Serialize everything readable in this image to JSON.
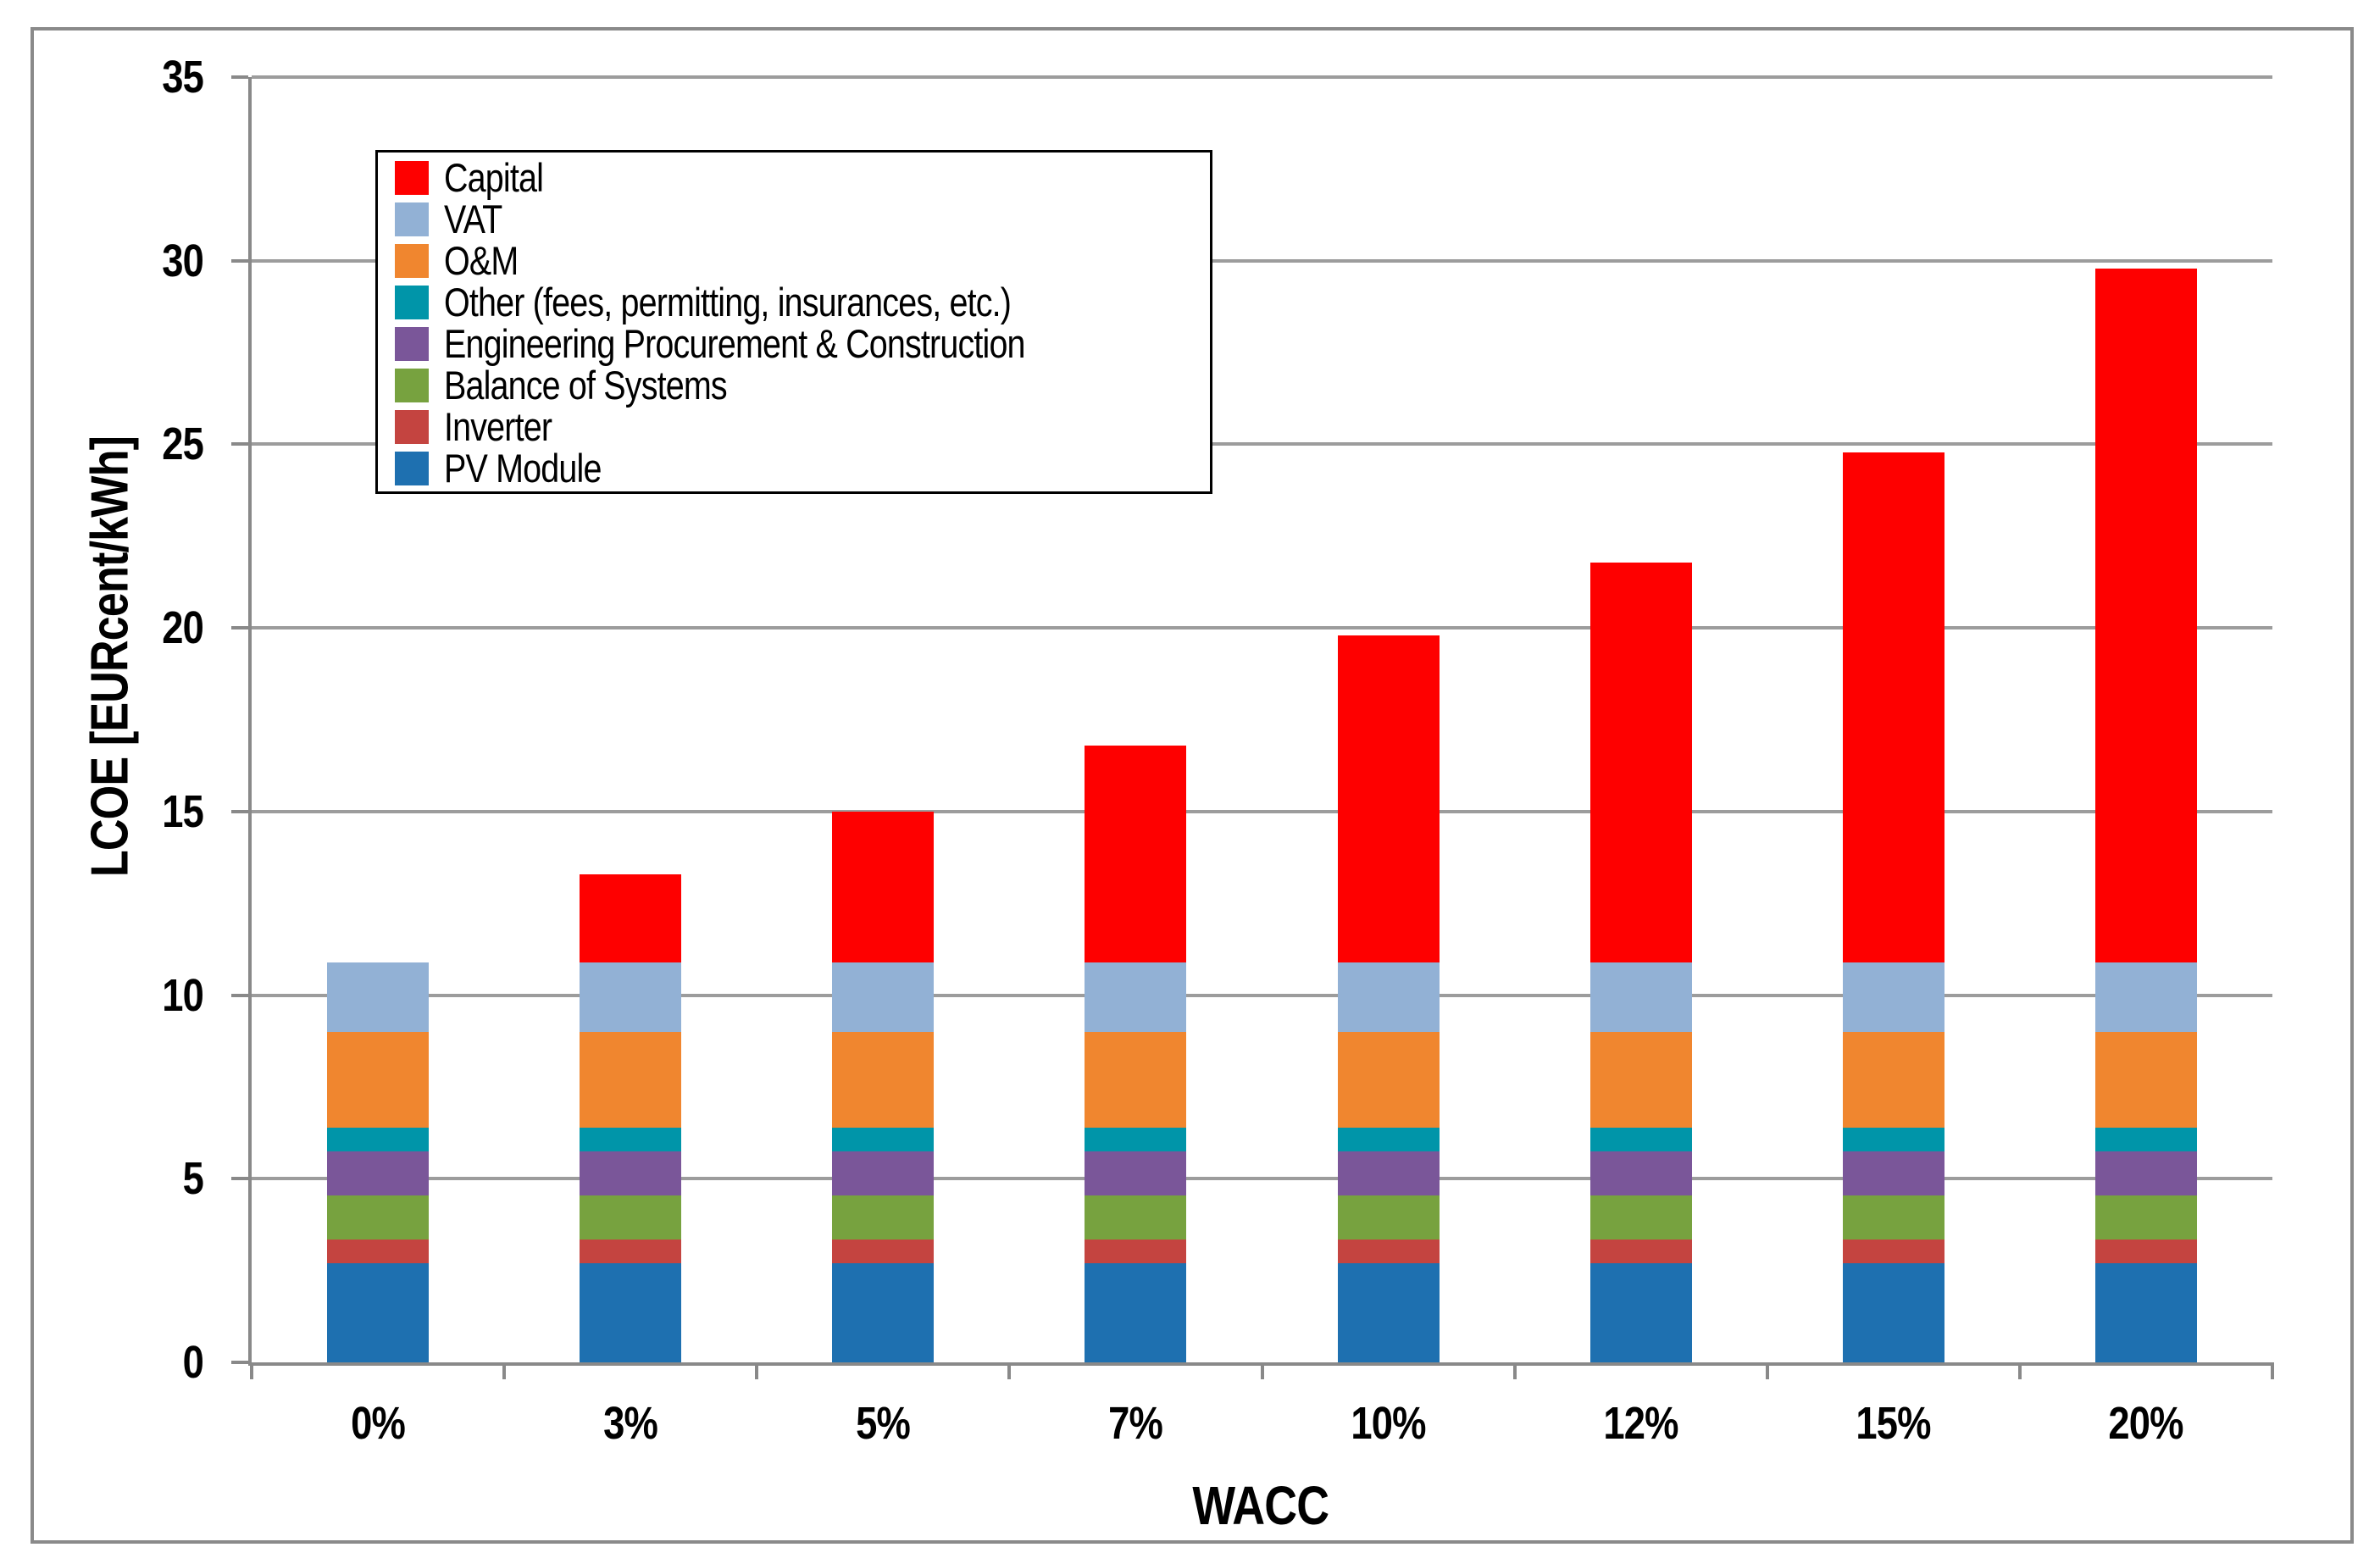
{
  "figure": {
    "background_color": "#ffffff",
    "outer_border_color": "#8a8a8a",
    "gridline_color": "#9c9c9c",
    "axis_color": "#898989",
    "legend_border_color": "#000000"
  },
  "chart_data": {
    "type": "bar",
    "stacked": true,
    "title": "",
    "xlabel": "WACC",
    "ylabel": "LCOE [EURcent/kWh]",
    "ylim": [
      0,
      35
    ],
    "yticks": [
      0,
      5,
      10,
      15,
      20,
      25,
      30,
      35
    ],
    "grid": "horizontal",
    "legend_position": "top-left",
    "legend_order": "reverse-of-stack",
    "categories": [
      "0%",
      "3%",
      "5%",
      "7%",
      "10%",
      "12%",
      "15%",
      "20%"
    ],
    "series": [
      {
        "name": "PV Module",
        "color": "#1e70b0",
        "values": [
          2.7,
          2.7,
          2.7,
          2.7,
          2.7,
          2.7,
          2.7,
          2.7
        ]
      },
      {
        "name": "Inverter",
        "color": "#c44440",
        "values": [
          0.65,
          0.65,
          0.65,
          0.65,
          0.65,
          0.65,
          0.65,
          0.65
        ]
      },
      {
        "name": "Balance of Systems",
        "color": "#77a23f",
        "values": [
          1.2,
          1.2,
          1.2,
          1.2,
          1.2,
          1.2,
          1.2,
          1.2
        ]
      },
      {
        "name": "Engineering Procurement & Construction",
        "color": "#7a5699",
        "values": [
          1.2,
          1.2,
          1.2,
          1.2,
          1.2,
          1.2,
          1.2,
          1.2
        ]
      },
      {
        "name": "Other (fees, permitting, insurances, etc.)",
        "color": "#0095a9",
        "values": [
          0.65,
          0.65,
          0.65,
          0.65,
          0.65,
          0.65,
          0.65,
          0.65
        ]
      },
      {
        "name": "O&M",
        "color": "#f0862f",
        "values": [
          2.6,
          2.6,
          2.6,
          2.6,
          2.6,
          2.6,
          2.6,
          2.6
        ]
      },
      {
        "name": "VAT",
        "color": "#92b1d5",
        "values": [
          1.9,
          1.9,
          1.9,
          1.9,
          1.9,
          1.9,
          1.9,
          1.9
        ]
      },
      {
        "name": "Capital",
        "color": "#fe0000",
        "values": [
          0,
          2.4,
          4.1,
          5.9,
          8.9,
          10.9,
          13.9,
          18.9
        ]
      }
    ],
    "totals": [
      10.9,
      13.3,
      15.0,
      16.8,
      19.8,
      21.8,
      24.8,
      29.8
    ]
  }
}
